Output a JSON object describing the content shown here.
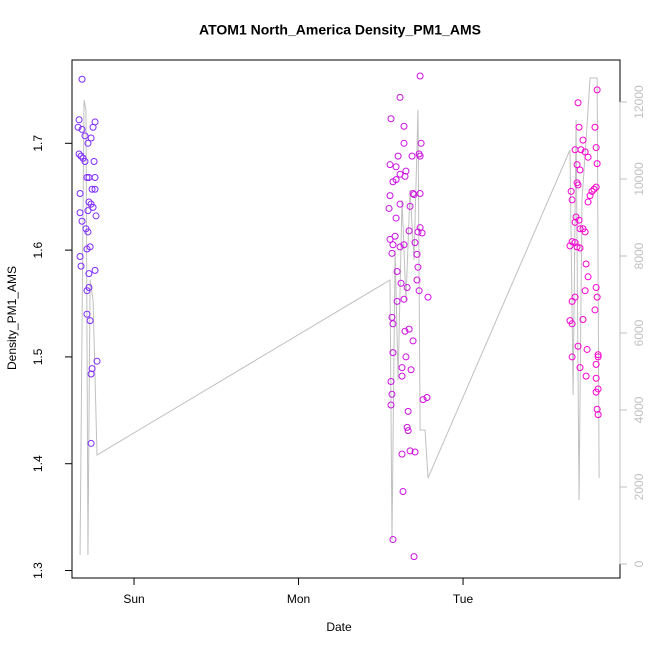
{
  "chart_data": {
    "type": "scatter",
    "title": "ATOM1 North_America Density_PM1_AMS",
    "xlabel": "Date",
    "ylabel": "Density_PM1_AMS",
    "xlim": [
      -0.377,
      2.954
    ],
    "xticks": [
      {
        "value": 0,
        "label": "Sun"
      },
      {
        "value": 1,
        "label": "Mon"
      },
      {
        "value": 2,
        "label": "Tue"
      }
    ],
    "ylim": [
      1.293,
      1.778
    ],
    "yticks": [
      1.3,
      1.4,
      1.5,
      1.6,
      1.7
    ],
    "y2lim": [
      -364,
      13091
    ],
    "y2ticks": [
      0,
      2000,
      4000,
      6000,
      8000,
      10000,
      12000
    ],
    "y2color": "#c0c0c0",
    "series": [
      {
        "type": "scatter",
        "colors": [
          "#7b2cff",
          "#ff00cc"
        ],
        "x": [
          -0.316,
          -0.334,
          -0.34,
          -0.316,
          -0.298,
          -0.28,
          -0.249,
          -0.237,
          -0.261,
          -0.334,
          -0.322,
          -0.31,
          -0.298,
          -0.243,
          -0.286,
          -0.274,
          -0.237,
          -0.328,
          -0.255,
          -0.237,
          -0.274,
          -0.261,
          -0.249,
          -0.328,
          -0.28,
          -0.231,
          -0.316,
          -0.292,
          -0.28,
          -0.267,
          -0.286,
          -0.328,
          -0.322,
          -0.237,
          -0.274,
          -0.274,
          -0.286,
          -0.286,
          -0.267,
          -0.255,
          -0.261,
          -0.225,
          -0.261,
          1.617,
          1.562,
          1.641,
          1.739,
          1.69,
          1.733,
          1.739,
          1.641,
          1.745,
          1.556,
          1.593,
          1.605,
          1.653,
          1.617,
          1.647,
          1.593,
          1.574,
          1.696,
          1.702,
          1.739,
          1.678,
          1.617,
          1.556,
          1.55,
          1.593,
          1.672,
          1.726,
          1.739,
          1.751,
          1.587,
          1.617,
          1.574,
          1.641,
          1.708,
          1.556,
          1.72,
          1.568,
          1.599,
          1.726,
          1.623,
          1.66,
          1.72,
          1.787,
          1.733,
          1.599,
          1.641,
          1.568,
          1.647,
          1.672,
          1.574,
          1.696,
          1.574,
          1.653,
          1.629,
          1.684,
          1.562,
          1.629,
          1.568,
          1.562,
          1.757,
          1.781,
          1.666,
          1.66,
          1.666,
          1.678,
          1.708,
          1.629,
          1.635,
          1.574,
          1.702,
          2.699,
          2.815,
          2.705,
          2.729,
          2.802,
          2.681,
          2.717,
          2.742,
          2.809,
          2.76,
          2.693,
          2.711,
          2.815,
          2.699,
          2.693,
          2.657,
          2.796,
          2.809,
          2.784,
          2.772,
          2.663,
          2.76,
          2.687,
          2.681,
          2.705,
          2.729,
          2.711,
          2.742,
          2.681,
          2.693,
          2.663,
          2.65,
          2.711,
          2.748,
          2.76,
          2.809,
          2.742,
          2.681,
          2.815,
          2.663,
          2.802,
          2.65,
          2.663,
          2.729,
          2.754,
          2.699,
          2.821,
          2.821,
          2.663,
          2.809,
          2.711,
          2.748,
          2.809,
          2.821,
          2.809,
          2.815,
          2.821
        ],
        "values": [
          1.76,
          1.722,
          1.715,
          1.713,
          1.707,
          1.7,
          1.715,
          1.72,
          1.705,
          1.69,
          1.688,
          1.686,
          1.683,
          1.683,
          1.668,
          1.668,
          1.668,
          1.653,
          1.657,
          1.657,
          1.645,
          1.643,
          1.64,
          1.635,
          1.637,
          1.632,
          1.627,
          1.62,
          1.617,
          1.603,
          1.601,
          1.594,
          1.585,
          1.581,
          1.578,
          1.565,
          1.562,
          1.54,
          1.534,
          1.489,
          1.484,
          1.496,
          1.419,
          1.743,
          1.723,
          1.716,
          1.763,
          1.688,
          1.69,
          1.688,
          1.7,
          1.7,
          1.68,
          1.678,
          1.688,
          1.674,
          1.671,
          1.669,
          1.666,
          1.664,
          1.653,
          1.652,
          1.653,
          1.641,
          1.643,
          1.651,
          1.639,
          1.63,
          1.618,
          1.617,
          1.621,
          1.616,
          1.613,
          1.603,
          1.605,
          1.605,
          1.607,
          1.61,
          1.596,
          1.597,
          1.58,
          1.584,
          1.569,
          1.565,
          1.572,
          1.556,
          1.562,
          1.552,
          1.554,
          1.537,
          1.524,
          1.526,
          1.531,
          1.515,
          1.504,
          1.5,
          1.49,
          1.488,
          1.477,
          1.482,
          1.465,
          1.455,
          1.46,
          1.462,
          1.449,
          1.434,
          1.431,
          1.412,
          1.411,
          1.409,
          1.374,
          1.329,
          1.313,
          1.738,
          1.75,
          1.715,
          1.703,
          1.715,
          1.694,
          1.694,
          1.692,
          1.696,
          1.687,
          1.68,
          1.675,
          1.681,
          1.661,
          1.663,
          1.655,
          1.657,
          1.659,
          1.655,
          1.651,
          1.647,
          1.645,
          1.631,
          1.626,
          1.628,
          1.62,
          1.62,
          1.617,
          1.607,
          1.603,
          1.608,
          1.604,
          1.602,
          1.587,
          1.575,
          1.565,
          1.562,
          1.556,
          1.556,
          1.552,
          1.544,
          1.534,
          1.531,
          1.535,
          1.507,
          1.51,
          1.502,
          1.5,
          1.5,
          1.493,
          1.49,
          1.482,
          1.48,
          1.47,
          1.467,
          1.451,
          1.446
        ]
      },
      {
        "type": "line",
        "axis": "y2",
        "color": "#c0c0c0",
        "x": [
          -0.328,
          -0.304,
          -0.292,
          -0.28,
          -0.267,
          -0.249,
          -0.225,
          1.556,
          1.568,
          1.587,
          1.605,
          1.629,
          1.653,
          1.678,
          1.702,
          1.726,
          1.739,
          1.769,
          1.787,
          2.65,
          2.669,
          2.687,
          2.705,
          2.723,
          2.748,
          2.772,
          2.815,
          2.827
        ],
        "values": [
          234,
          12052,
          11792,
          234,
          7377,
          6857,
          2831,
          7377,
          623,
          8156,
          4779,
          9455,
          6857,
          9714,
          7896,
          11792,
          3481,
          3481,
          2234,
          10753,
          4390,
          11532,
          1662,
          9455,
          11013,
          12623,
          12623,
          2234
        ]
      }
    ]
  }
}
